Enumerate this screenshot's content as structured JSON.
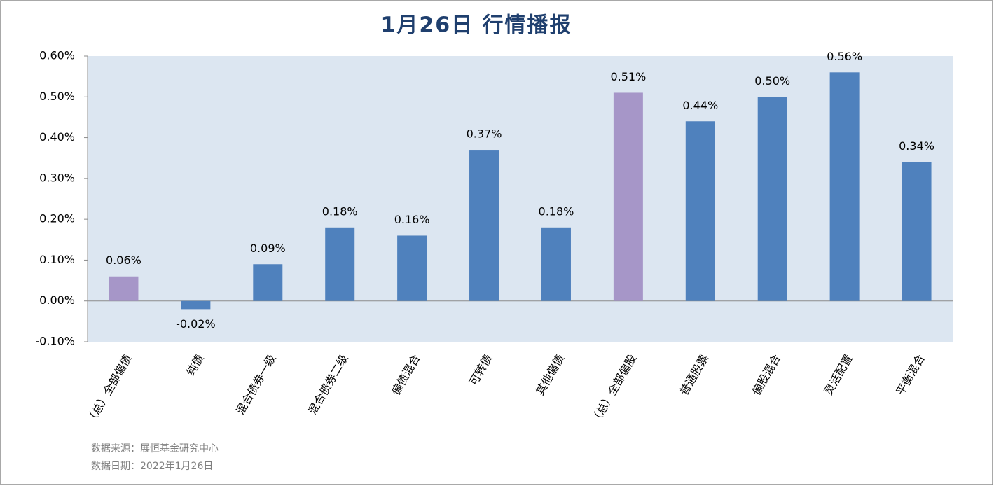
{
  "chart_data": {
    "type": "bar",
    "title": "1月26日  行情播报",
    "categories": [
      "（总）全部偏债",
      "纯债",
      "混合债券一级",
      "混合债券二级",
      "偏债混合",
      "可转债",
      "其他偏债",
      "（总）全部偏股",
      "普通股票",
      "偏股混合",
      "灵活配置",
      "平衡混合"
    ],
    "values": [
      0.06,
      -0.02,
      0.09,
      0.18,
      0.16,
      0.37,
      0.18,
      0.51,
      0.44,
      0.5,
      0.56,
      0.34
    ],
    "value_labels": [
      "0.06%",
      "-0.02%",
      "0.09%",
      "0.18%",
      "0.16%",
      "0.37%",
      "0.18%",
      "0.51%",
      "0.44%",
      "0.50%",
      "0.56%",
      "0.34%"
    ],
    "colors": [
      "#a696c8",
      "#4f81bd",
      "#4f81bd",
      "#4f81bd",
      "#4f81bd",
      "#4f81bd",
      "#4f81bd",
      "#a696c8",
      "#4f81bd",
      "#4f81bd",
      "#4f81bd",
      "#4f81bd"
    ],
    "ylim": [
      -0.1,
      0.6
    ],
    "yticks": [
      {
        "value": -0.1,
        "label": "-0.10%"
      },
      {
        "value": 0,
        "label": "0.00%"
      },
      {
        "value": 0.1,
        "label": "0.10%"
      },
      {
        "value": 0.2,
        "label": "0.20%"
      },
      {
        "value": 0.3,
        "label": "0.30%"
      },
      {
        "value": 0.4,
        "label": "0.40%"
      },
      {
        "value": 0.5,
        "label": "0.50%"
      },
      {
        "value": 0.6,
        "label": "0.60%"
      }
    ],
    "grid": false,
    "notes": [
      "数据来源：展恒基金研究中心",
      "数据日期：2022年1月26日"
    ]
  }
}
